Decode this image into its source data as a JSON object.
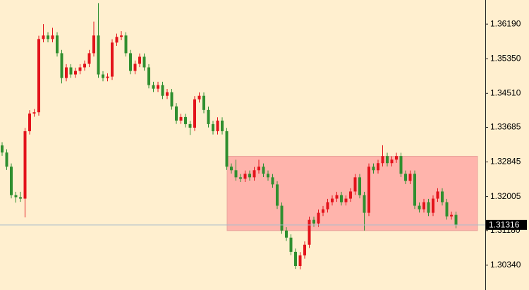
{
  "chart_data": {
    "type": "candlestick",
    "up_color": "#e3131b",
    "down_color": "#2f8f2f",
    "ylim": [
      1.29738,
      1.36775
    ],
    "yticks": [
      {
        "value": 1.3619,
        "label": "1.36190"
      },
      {
        "value": 1.3535,
        "label": "1.35350"
      },
      {
        "value": 1.3451,
        "label": "1.34510"
      },
      1.33685,
      1.32845,
      1.32005,
      {
        "value": 1.3118,
        "label": "1.31180"
      },
      {
        "value": 1.3034,
        "label": "1.30340"
      }
    ],
    "zone": {
      "low": 1.3118,
      "high": 1.32983,
      "color": "#ffb4ac"
    },
    "open": [
      1.33246,
      1.33074,
      1.3273,
      1.32041,
      1.3199,
      1.31955,
      1.33591,
      1.34021,
      1.3405,
      1.35828,
      1.35914,
      1.35828,
      1.35914,
      1.35484,
      1.34882,
      1.3514,
      1.34968,
      1.35054,
      1.3514,
      1.35226,
      1.35484,
      1.35914,
      1.34968,
      1.34882,
      1.34916,
      1.35742,
      1.3588,
      1.35914,
      1.35484,
      1.35054,
      1.35226,
      1.35398,
      1.3514,
      1.3471,
      1.34623,
      1.3471,
      1.34451,
      1.34537,
      1.34193,
      1.33849,
      1.33935,
      1.33763,
      1.33677,
      1.34365,
      1.34451,
      1.34107,
      1.33763,
      1.33591,
      1.33849,
      1.33591,
      1.3273,
      1.32644,
      1.32472,
      1.32437,
      1.32558,
      1.32472,
      1.32644,
      1.3273,
      1.32558,
      1.32472,
      1.323,
      1.31783,
      1.31181,
      1.31009,
      1.30664,
      1.3032,
      1.30578,
      1.30837,
      1.31439,
      1.31353,
      1.31611,
      1.31697,
      1.31869,
      1.31955,
      1.32041,
      1.31869,
      1.31955,
      1.32128,
      1.32472,
      1.32041,
      1.31611,
      1.3273,
      1.32644,
      1.32816,
      1.32988,
      1.32816,
      1.32902,
      1.32988,
      1.32558,
      1.32386,
      1.32558,
      1.31783,
      1.31697,
      1.31869,
      1.31611,
      1.31955,
      1.32128,
      1.31869,
      1.31525,
      1.3156
    ],
    "high": [
      1.33326,
      1.33154,
      1.3281,
      1.32121,
      1.3212,
      1.33671,
      1.34101,
      1.3413,
      1.35908,
      1.3619,
      1.35994,
      1.361,
      1.35994,
      1.35564,
      1.3522,
      1.3522,
      1.35134,
      1.3522,
      1.35306,
      1.35564,
      1.3625,
      1.367,
      1.35048,
      1.34996,
      1.35822,
      1.3596,
      1.3602,
      1.35994,
      1.35564,
      1.35306,
      1.35478,
      1.35478,
      1.3522,
      1.3479,
      1.3479,
      1.3479,
      1.34617,
      1.34617,
      1.34273,
      1.34015,
      1.34015,
      1.33843,
      1.34445,
      1.34531,
      1.34531,
      1.34187,
      1.33843,
      1.33929,
      1.33929,
      1.33671,
      1.3281,
      1.329,
      1.32552,
      1.32638,
      1.32638,
      1.32724,
      1.329,
      1.3281,
      1.32638,
      1.32552,
      1.3238,
      1.31863,
      1.31261,
      1.31089,
      1.30744,
      1.30658,
      1.30917,
      1.31519,
      1.31519,
      1.31691,
      1.31777,
      1.31949,
      1.32035,
      1.32121,
      1.32121,
      1.32035,
      1.32208,
      1.32552,
      1.32552,
      1.32121,
      1.3281,
      1.3281,
      1.32896,
      1.3325,
      1.33068,
      1.32982,
      1.33068,
      1.33068,
      1.32638,
      1.32638,
      1.32638,
      1.31863,
      1.31949,
      1.31949,
      1.32035,
      1.32208,
      1.32208,
      1.31949,
      1.3164,
      1.3164
    ],
    "low": [
      1.32994,
      1.3265,
      1.31961,
      1.3186,
      1.31875,
      1.315,
      1.33511,
      1.33941,
      1.3397,
      1.35748,
      1.35748,
      1.35748,
      1.35404,
      1.3475,
      1.34802,
      1.34888,
      1.34888,
      1.34974,
      1.3506,
      1.35146,
      1.35404,
      1.34888,
      1.34802,
      1.34802,
      1.34836,
      1.35662,
      1.358,
      1.35404,
      1.34974,
      1.34974,
      1.35146,
      1.3506,
      1.3463,
      1.34543,
      1.34543,
      1.34371,
      1.34371,
      1.34113,
      1.33769,
      1.33769,
      1.33683,
      1.335,
      1.33597,
      1.34285,
      1.34027,
      1.33683,
      1.33511,
      1.33511,
      1.33511,
      1.3265,
      1.32564,
      1.32392,
      1.32357,
      1.32357,
      1.32392,
      1.32392,
      1.32564,
      1.32478,
      1.32392,
      1.3222,
      1.31703,
      1.31101,
      1.30929,
      1.30584,
      1.3025,
      1.3024,
      1.30498,
      1.30757,
      1.31273,
      1.31273,
      1.31531,
      1.31617,
      1.31789,
      1.31875,
      1.31789,
      1.31789,
      1.31875,
      1.32048,
      1.31961,
      1.3118,
      1.31531,
      1.32564,
      1.32564,
      1.32736,
      1.32736,
      1.32736,
      1.32822,
      1.32478,
      1.32306,
      1.32306,
      1.31703,
      1.31617,
      1.31617,
      1.31531,
      1.31531,
      1.31875,
      1.31789,
      1.31445,
      1.31445,
      1.31236
    ],
    "close": [
      1.33074,
      1.3273,
      1.32041,
      1.3199,
      1.31955,
      1.33591,
      1.34021,
      1.3405,
      1.35828,
      1.35914,
      1.35828,
      1.35914,
      1.35484,
      1.34882,
      1.3514,
      1.34968,
      1.35054,
      1.3514,
      1.35226,
      1.35484,
      1.35914,
      1.34968,
      1.34882,
      1.34916,
      1.35742,
      1.3588,
      1.35914,
      1.35484,
      1.35054,
      1.35226,
      1.35398,
      1.3514,
      1.3471,
      1.34623,
      1.3471,
      1.34451,
      1.34537,
      1.34193,
      1.33849,
      1.33935,
      1.33763,
      1.33677,
      1.34365,
      1.34451,
      1.34107,
      1.33763,
      1.33591,
      1.33849,
      1.33591,
      1.3273,
      1.32644,
      1.32472,
      1.32437,
      1.32558,
      1.32472,
      1.32644,
      1.3273,
      1.32558,
      1.32472,
      1.323,
      1.31783,
      1.31181,
      1.31009,
      1.30664,
      1.3032,
      1.30578,
      1.30837,
      1.31439,
      1.31353,
      1.31611,
      1.31697,
      1.31869,
      1.31955,
      1.32041,
      1.31869,
      1.31955,
      1.32128,
      1.32472,
      1.32041,
      1.31611,
      1.3273,
      1.32644,
      1.32816,
      1.32988,
      1.32816,
      1.32902,
      1.32988,
      1.32558,
      1.32386,
      1.32558,
      1.31783,
      1.31697,
      1.31869,
      1.31611,
      1.31955,
      1.32128,
      1.31869,
      1.31525,
      1.3156,
      1.31316
    ]
  }
}
